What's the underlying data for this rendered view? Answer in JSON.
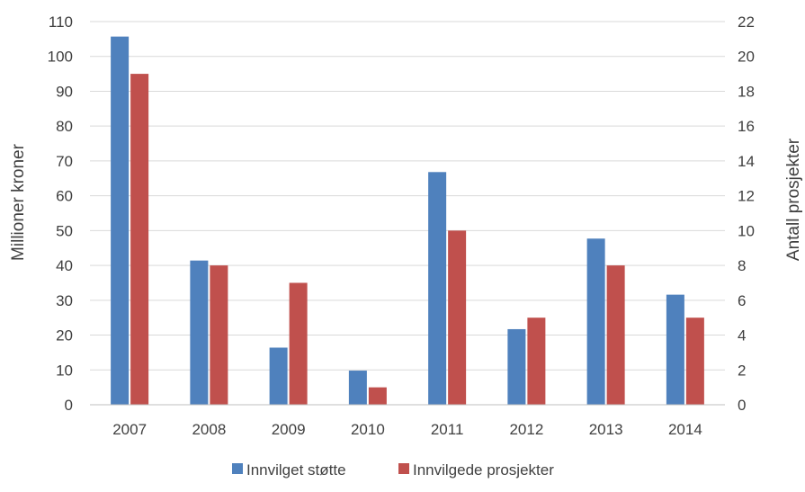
{
  "chart_data": {
    "type": "bar",
    "title": "",
    "categories": [
      "2007",
      "2008",
      "2009",
      "2010",
      "2011",
      "2012",
      "2013",
      "2014"
    ],
    "y_left": {
      "label": "Millioner kroner",
      "min": 0,
      "max": 110,
      "step": 10
    },
    "y_right": {
      "label": "Antall prosjekter",
      "min": 0,
      "max": 22,
      "step": 2
    },
    "series": [
      {
        "name": "Innvilget støtte",
        "axis": "left",
        "color": "#4f81bd",
        "values": [
          105.7,
          41.4,
          16.4,
          9.8,
          66.8,
          21.7,
          47.7,
          31.6
        ]
      },
      {
        "name": "Innvilgede prosjekter",
        "axis": "right",
        "color": "#c0504d",
        "values": [
          19,
          8,
          7,
          1,
          10,
          5,
          8,
          5
        ]
      }
    ],
    "grid": true,
    "legend_position": "bottom"
  }
}
